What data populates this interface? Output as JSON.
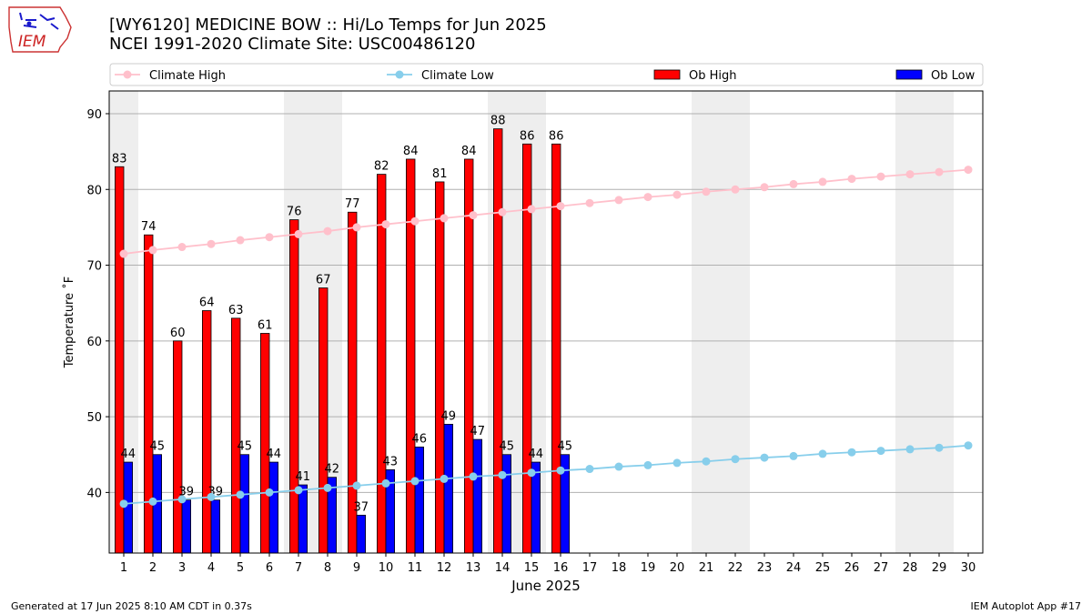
{
  "header": {
    "title": "[WY6120] MEDICINE BOW :: Hi/Lo Temps for Jun 2025",
    "subtitle": "NCEI 1991-2020 Climate Site: USC00486120"
  },
  "logo": {
    "text": "IEM"
  },
  "footer": {
    "generated": "Generated at 17 Jun 2025 8:10 AM CDT in 0.37s",
    "app": "IEM Autoplot App #17"
  },
  "colors": {
    "climate_high": "#ffc0cb",
    "climate_low": "#87ceeb",
    "ob_high": "#ff0000",
    "ob_low": "#0000ff",
    "weekend_band": "#eeeeee",
    "grid": "#b0b0b0"
  },
  "chart_data": {
    "type": "bar",
    "xlabel": "June 2025",
    "ylabel": "Temperature ˚F",
    "xlim": [
      0.5,
      30.5
    ],
    "ylim": [
      32,
      93
    ],
    "yticks": [
      40,
      50,
      60,
      70,
      80,
      90
    ],
    "grid": "horizontal",
    "legend_position": "top",
    "weekend_days": [
      1,
      7,
      8,
      14,
      15,
      21,
      22,
      28,
      29
    ],
    "days": [
      1,
      2,
      3,
      4,
      5,
      6,
      7,
      8,
      9,
      10,
      11,
      12,
      13,
      14,
      15,
      16,
      17,
      18,
      19,
      20,
      21,
      22,
      23,
      24,
      25,
      26,
      27,
      28,
      29,
      30
    ],
    "series": [
      {
        "name": "Climate High",
        "kind": "line",
        "values": [
          71.5,
          72.0,
          72.4,
          72.8,
          73.3,
          73.7,
          74.1,
          74.5,
          75.0,
          75.4,
          75.8,
          76.2,
          76.6,
          77.0,
          77.4,
          77.8,
          78.2,
          78.6,
          79.0,
          79.3,
          79.7,
          80.0,
          80.3,
          80.7,
          81.0,
          81.4,
          81.7,
          82.0,
          82.3,
          82.6
        ]
      },
      {
        "name": "Climate Low",
        "kind": "line",
        "values": [
          38.5,
          38.8,
          39.1,
          39.4,
          39.7,
          40.0,
          40.3,
          40.6,
          40.9,
          41.2,
          41.5,
          41.8,
          42.1,
          42.3,
          42.6,
          42.9,
          43.1,
          43.4,
          43.6,
          43.9,
          44.1,
          44.4,
          44.6,
          44.8,
          45.1,
          45.3,
          45.5,
          45.7,
          45.9,
          46.2
        ]
      },
      {
        "name": "Ob High",
        "kind": "bar",
        "values": [
          83,
          74,
          60,
          64,
          63,
          61,
          76,
          67,
          77,
          82,
          84,
          81,
          84,
          88,
          86,
          86
        ]
      },
      {
        "name": "Ob Low",
        "kind": "bar",
        "values": [
          44,
          45,
          39,
          39,
          45,
          44,
          41,
          42,
          37,
          43,
          46,
          49,
          47,
          45,
          44,
          45
        ]
      }
    ]
  }
}
